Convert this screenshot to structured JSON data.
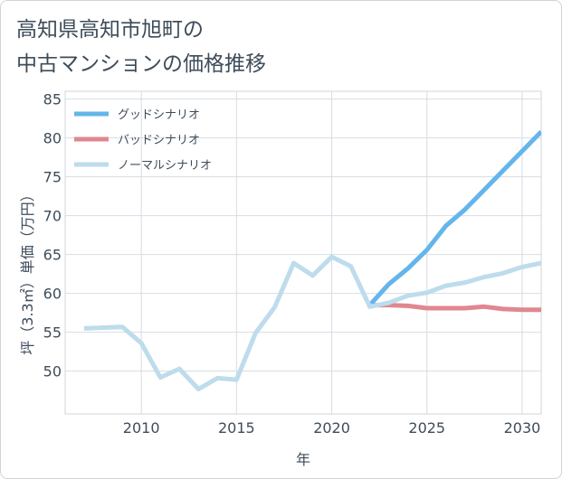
{
  "title": {
    "line1": "高知県高知市旭町の",
    "line2": "中古マンションの価格推移"
  },
  "chart_data": {
    "type": "line",
    "title": "高知県高知市旭町の中古マンションの価格推移",
    "xlabel": "年",
    "ylabel": "坪（3.3㎡）単価（万円）",
    "xlim": [
      2006,
      2031
    ],
    "ylim": [
      44.5,
      86
    ],
    "xticks": [
      2010,
      2015,
      2020,
      2025,
      2030
    ],
    "yticks": [
      50,
      55,
      60,
      65,
      70,
      75,
      80,
      85
    ],
    "grid": true,
    "legend_position": "top-left",
    "series": [
      {
        "name": "グッドシナリオ",
        "color": "#64b5eb",
        "x": [
          2022,
          2023,
          2024,
          2025,
          2026,
          2027,
          2028,
          2029,
          2030,
          2031
        ],
        "values": [
          58.5,
          61.2,
          63.2,
          65.6,
          68.7,
          70.8,
          73.3,
          75.8,
          78.3,
          80.8
        ]
      },
      {
        "name": "バッドシナリオ",
        "color": "#e0878f",
        "x": [
          2022,
          2023,
          2024,
          2025,
          2026,
          2027,
          2028,
          2029,
          2030,
          2031
        ],
        "values": [
          58.5,
          58.5,
          58.4,
          58.1,
          58.1,
          58.1,
          58.3,
          58.0,
          57.9,
          57.9
        ]
      },
      {
        "name": "ノーマルシナリオ",
        "color": "#bddcec",
        "x": [
          2007,
          2008,
          2009,
          2010,
          2011,
          2012,
          2013,
          2014,
          2015,
          2016,
          2017,
          2018,
          2019,
          2020,
          2021,
          2022,
          2023,
          2024,
          2025,
          2026,
          2027,
          2028,
          2029,
          2030,
          2031
        ],
        "values": [
          55.5,
          55.6,
          55.7,
          53.6,
          49.2,
          50.3,
          47.7,
          49.1,
          48.9,
          54.9,
          58.2,
          63.9,
          62.3,
          64.7,
          63.5,
          58.3,
          58.8,
          59.7,
          60.1,
          61.0,
          61.4,
          62.1,
          62.6,
          63.4,
          63.9
        ]
      }
    ]
  }
}
